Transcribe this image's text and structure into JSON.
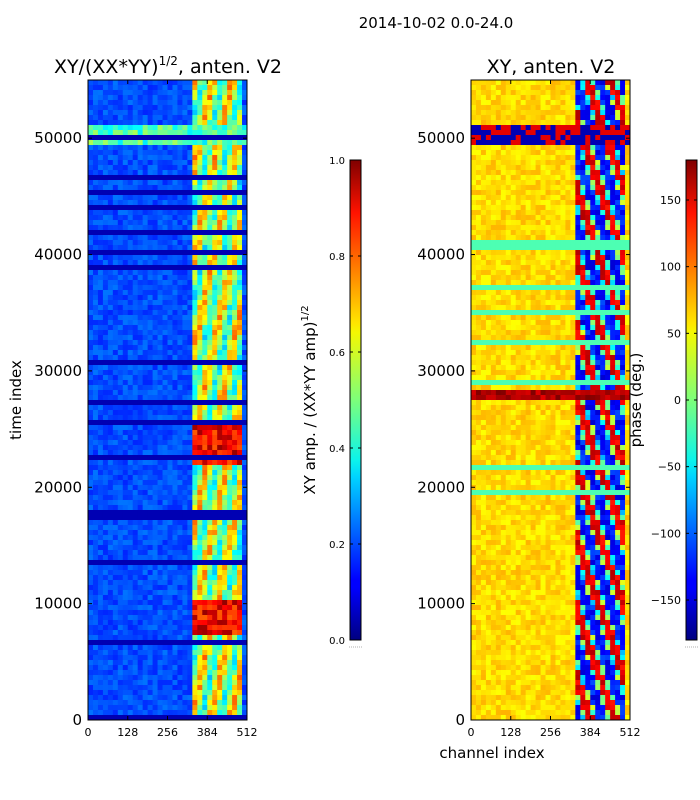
{
  "suptitle": "2014-10-02 0.0-24.0",
  "chart_data": [
    {
      "type": "heatmap",
      "title": "XY/(XX*YY)^1/2, anten. V2",
      "title_main": "XY/(XX*YY)",
      "title_sup": "1/2",
      "title_tail": ", anten. V2",
      "xlabel": "",
      "ylabel": "time index",
      "xlim": [
        0,
        512
      ],
      "ylim": [
        0,
        55000
      ],
      "xticks": [
        0,
        128,
        256,
        384,
        512
      ],
      "yticks": [
        0,
        10000,
        20000,
        30000,
        40000,
        50000
      ],
      "colorscale": "jet",
      "colorbar": {
        "label_main": "XY amp. / (XX*YY amp)",
        "label_sup": "1/2",
        "range": [
          0.0,
          1.0
        ],
        "ticks": [
          0.0,
          0.2,
          0.4,
          0.6,
          0.8,
          1.0
        ],
        "tick_labels": [
          "0.0",
          "0.2",
          "0.4",
          "0.6",
          "0.8",
          "1.0"
        ]
      }
    },
    {
      "type": "heatmap",
      "title": "XY, anten. V2",
      "xlabel": "channel index",
      "ylabel": "",
      "xlim": [
        0,
        512
      ],
      "ylim": [
        0,
        55000
      ],
      "xticks": [
        0,
        128,
        256,
        384,
        512
      ],
      "yticks": [
        0,
        10000,
        20000,
        30000,
        40000,
        50000
      ],
      "colorscale": "jet",
      "colorbar": {
        "label": "phase (deg.)",
        "range": [
          -180,
          180
        ],
        "ticks": [
          -150,
          -100,
          -50,
          0,
          50,
          100,
          150
        ],
        "tick_labels": [
          "−150",
          "−100",
          "−50",
          "0",
          "50",
          "100",
          "150"
        ]
      }
    }
  ]
}
